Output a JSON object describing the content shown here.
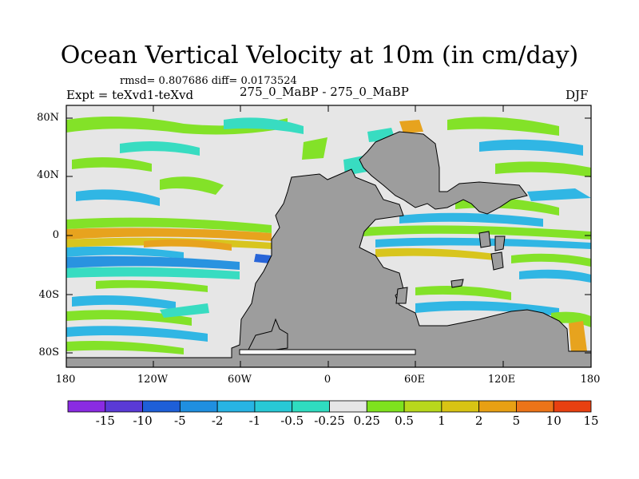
{
  "title": "Ocean Vertical Velocity at 10m (in cm/day)",
  "stats": "rmsd= 0.807686 diff= 0.0173524",
  "experiment": "Expt = teXvd1-teXvd",
  "case": "275_0_MaBP - 275_0_MaBP",
  "season": "DJF",
  "y_ticks": [
    "80N",
    "40N",
    "0",
    "40S",
    "80S"
  ],
  "x_ticks": [
    "180",
    "120W",
    "60W",
    "0",
    "60E",
    "120E",
    "180"
  ],
  "colorbar": {
    "labels": [
      "-15",
      "-10",
      "-5",
      "-2",
      "-1",
      "-0.5",
      "-0.25",
      "0.25",
      "0.5",
      "1",
      "2",
      "5",
      "10",
      "15"
    ],
    "colors": [
      "#8a2be2",
      "#5a3ad6",
      "#1e5fd8",
      "#1f8fe0",
      "#27b4e4",
      "#28c9d6",
      "#2fdcc0",
      "#e6e6e6",
      "#7ee21e",
      "#b8d81c",
      "#d8c414",
      "#e8a014",
      "#ec7418",
      "#e84010"
    ]
  },
  "colors": {
    "land": "#9d9d9d",
    "neutral": "#e6e6e6"
  }
}
